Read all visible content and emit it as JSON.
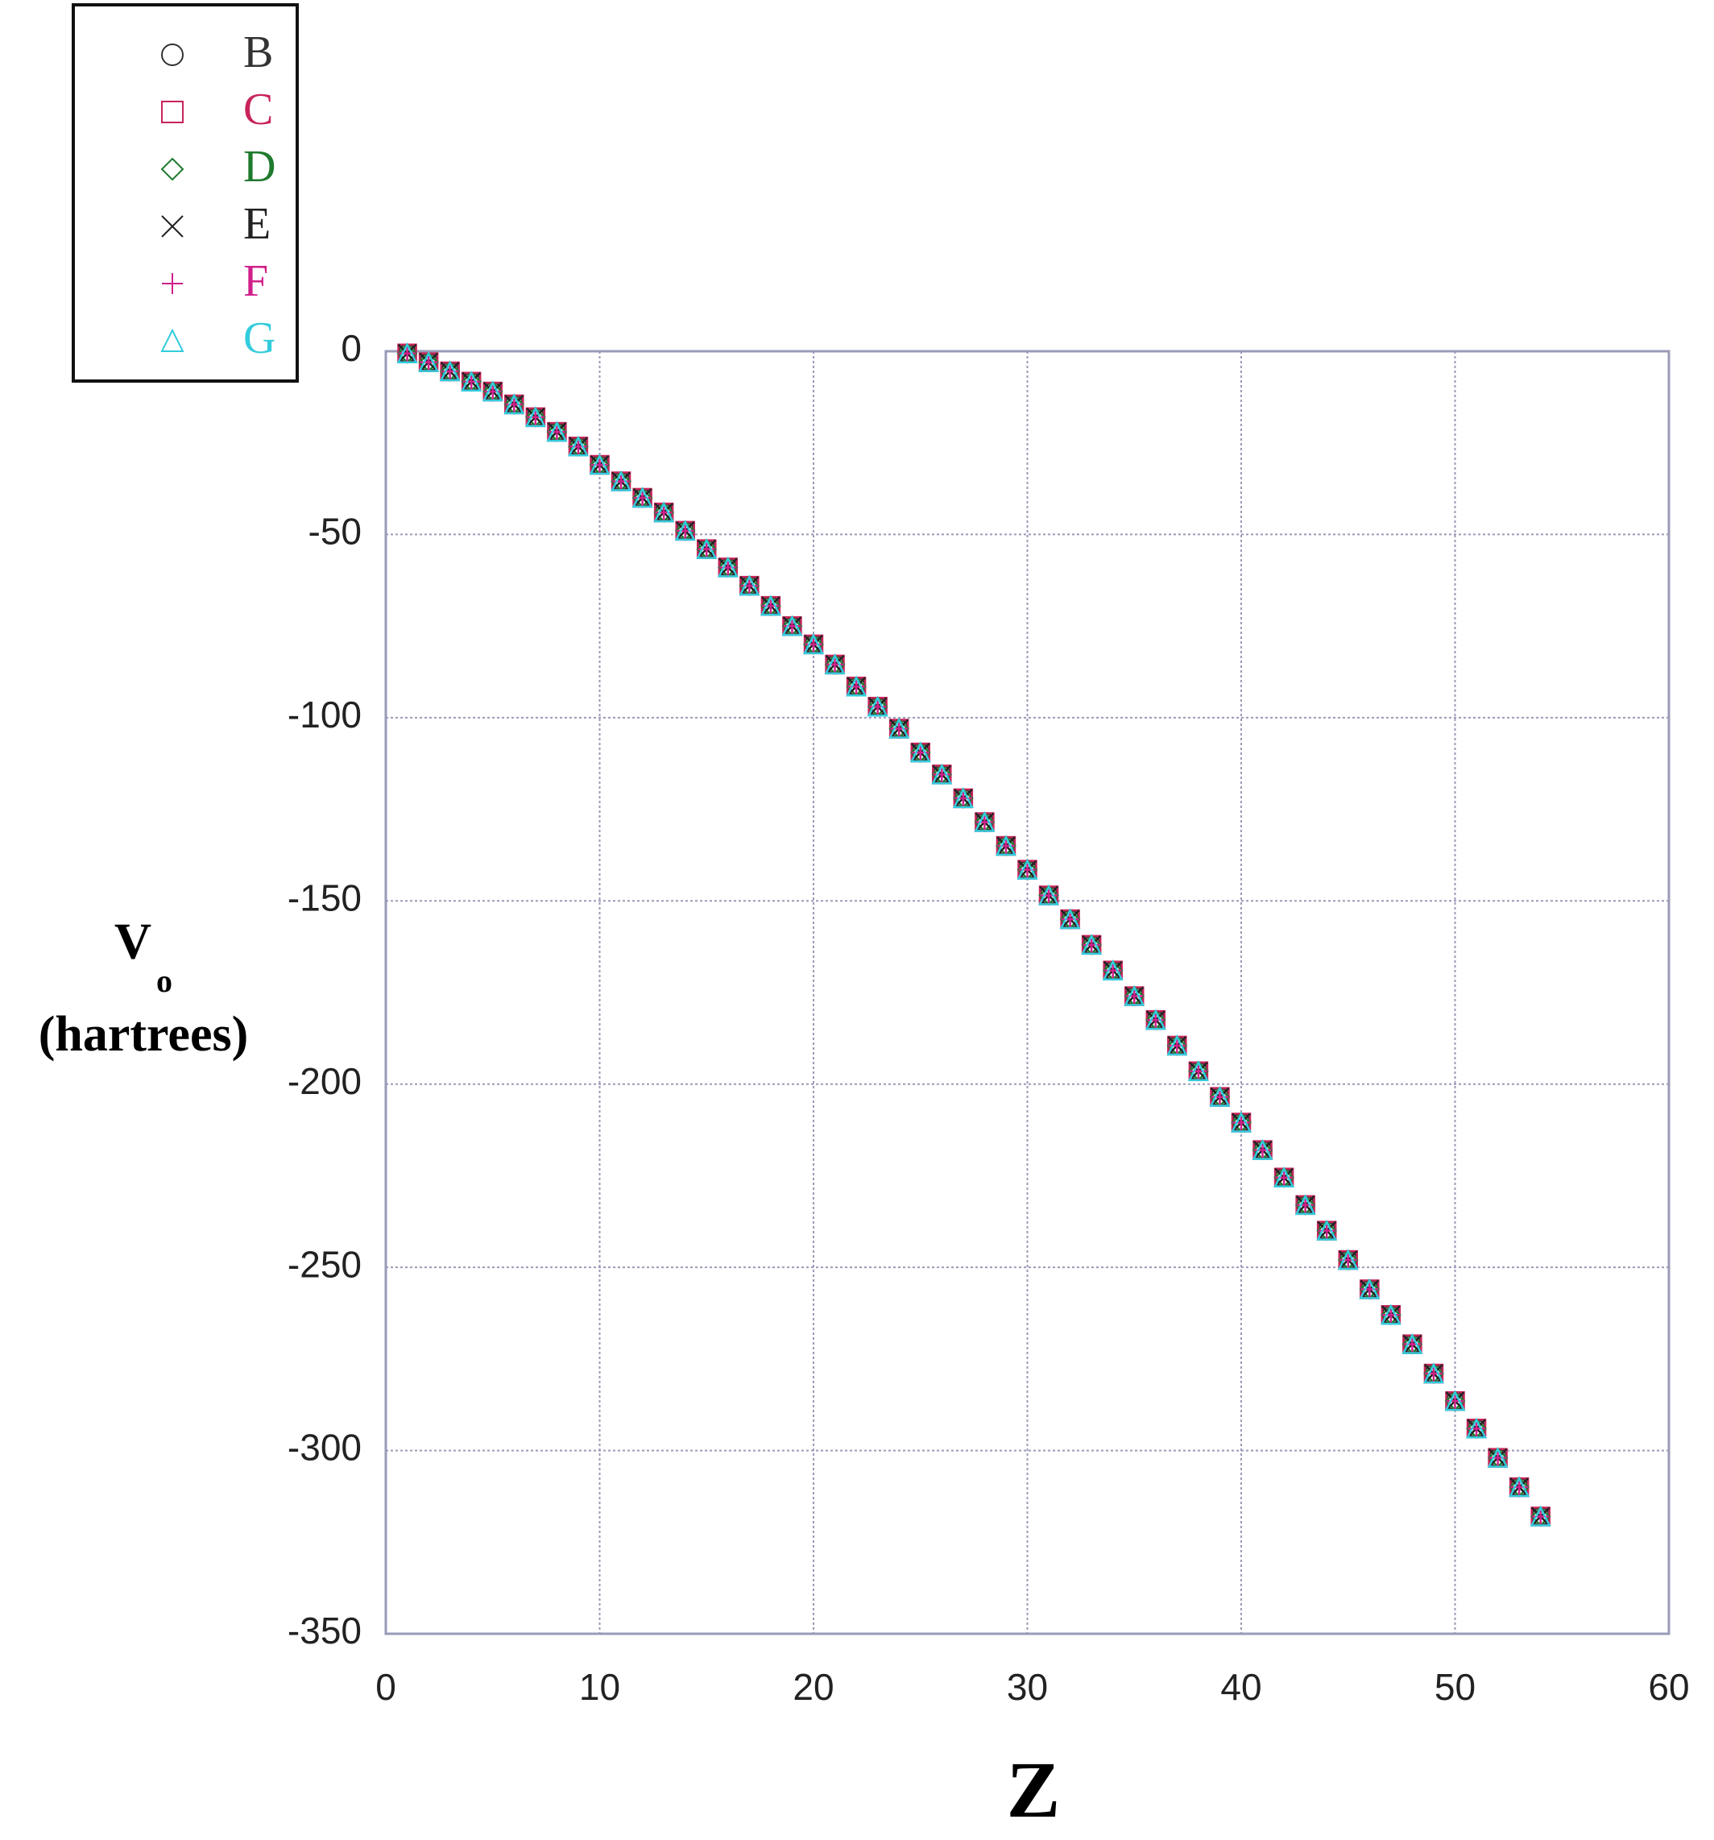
{
  "chart_data": {
    "type": "scatter",
    "x_label": "Z",
    "y_label": {
      "main": "V",
      "subscript": "o",
      "unit": "(hartrees)"
    },
    "x": [
      1,
      2,
      3,
      4,
      5,
      6,
      7,
      8,
      9,
      10,
      11,
      12,
      13,
      14,
      15,
      16,
      17,
      18,
      19,
      20,
      21,
      22,
      23,
      24,
      25,
      26,
      27,
      28,
      29,
      30,
      31,
      32,
      33,
      34,
      35,
      36,
      37,
      38,
      39,
      40,
      41,
      42,
      43,
      44,
      45,
      46,
      47,
      48,
      49,
      50,
      51,
      52,
      53,
      54
    ],
    "series": [
      {
        "name": "B",
        "color": "#333333",
        "marker": "circle",
        "values": [
          -0.6,
          -3,
          -5.5,
          -8.3,
          -11,
          -14.5,
          -18,
          -22,
          -26,
          -31,
          -35.5,
          -40,
          -44,
          -49,
          -54,
          -59,
          -64,
          -69.5,
          -75,
          -80,
          -85.5,
          -91.5,
          -97,
          -103,
          -109.5,
          -115.5,
          -122,
          -128.5,
          -135,
          -141.5,
          -148.5,
          -155,
          -162,
          -169,
          -176,
          -182.5,
          -189.5,
          -196.5,
          -203.5,
          -210.5,
          -218,
          -225.5,
          -233,
          -240,
          -248,
          -256,
          -263,
          -271,
          -279,
          -286.5,
          -294,
          -302,
          -310,
          -318
        ]
      },
      {
        "name": "C",
        "color": "#c8245a",
        "marker": "square",
        "values": [
          -0.6,
          -3,
          -5.5,
          -8.3,
          -11,
          -14.5,
          -18,
          -22,
          -26,
          -31,
          -35.5,
          -40,
          -44,
          -49,
          -54,
          -59,
          -64,
          -69.5,
          -75,
          -80,
          -85.5,
          -91.5,
          -97,
          -103,
          -109.5,
          -115.5,
          -122,
          -128.5,
          -135,
          -141.5,
          -148.5,
          -155,
          -162,
          -169,
          -176,
          -182.5,
          -189.5,
          -196.5,
          -203.5,
          -210.5,
          -218,
          -225.5,
          -233,
          -240,
          -248,
          -256,
          -263,
          -271,
          -279,
          -286.5,
          -294,
          -302,
          -310,
          -318
        ]
      },
      {
        "name": "D",
        "color": "#1f7a2e",
        "marker": "diamond",
        "values": [
          -0.6,
          -3,
          -5.5,
          -8.3,
          -11,
          -14.5,
          -18,
          -22,
          -26,
          -31,
          -35.5,
          -40,
          -44,
          -49,
          -54,
          -59,
          -64,
          -69.5,
          -75,
          -80,
          -85.5,
          -91.5,
          -97,
          -103,
          -109.5,
          -115.5,
          -122,
          -128.5,
          -135,
          -141.5,
          -148.5,
          -155,
          -162,
          -169,
          -176,
          -182.5,
          -189.5,
          -196.5,
          -203.5,
          -210.5,
          -218,
          -225.5,
          -233,
          -240,
          -248,
          -256,
          -263,
          -271,
          -279,
          -286.5,
          -294,
          -302,
          -310,
          -318
        ]
      },
      {
        "name": "E",
        "color": "#222222",
        "marker": "cross",
        "values": [
          -0.6,
          -3,
          -5.5,
          -8.3,
          -11,
          -14.5,
          -18,
          -22,
          -26,
          -31,
          -35.5,
          -40,
          -44,
          -49,
          -54,
          -59,
          -64,
          -69.5,
          -75,
          -80,
          -85.5,
          -91.5,
          -97,
          -103,
          -109.5,
          -115.5,
          -122,
          -128.5,
          -135,
          -141.5,
          -148.5,
          -155,
          -162,
          -169,
          -176,
          -182.5,
          -189.5,
          -196.5,
          -203.5,
          -210.5,
          -218,
          -225.5,
          -233,
          -240,
          -248,
          -256,
          -263,
          -271,
          -279,
          -286.5,
          -294,
          -302,
          -310,
          -318
        ]
      },
      {
        "name": "F",
        "color": "#d0208a",
        "marker": "plus",
        "values": [
          -0.6,
          -3,
          -5.5,
          -8.3,
          -11,
          -14.5,
          -18,
          -22,
          -26,
          -31,
          -35.5,
          -40,
          -44,
          -49,
          -54,
          -59,
          -64,
          -69.5,
          -75,
          -80,
          -85.5,
          -91.5,
          -97,
          -103,
          -109.5,
          -115.5,
          -122,
          -128.5,
          -135,
          -141.5,
          -148.5,
          -155,
          -162,
          -169,
          -176,
          -182.5,
          -189.5,
          -196.5,
          -203.5,
          -210.5,
          -218,
          -225.5,
          -233,
          -240,
          -248,
          -256,
          -263,
          -271,
          -279,
          -286.5,
          -294,
          -302,
          -310,
          -318
        ]
      },
      {
        "name": "G",
        "color": "#33ccdd",
        "marker": "triangle",
        "values": [
          -0.6,
          -3,
          -5.5,
          -8.3,
          -11,
          -14.5,
          -18,
          -22,
          -26,
          -31,
          -35.5,
          -40,
          -44,
          -49,
          -54,
          -59,
          -64,
          -69.5,
          -75,
          -80,
          -85.5,
          -91.5,
          -97,
          -103,
          -109.5,
          -115.5,
          -122,
          -128.5,
          -135,
          -141.5,
          -148.5,
          -155,
          -162,
          -169,
          -176,
          -182.5,
          -189.5,
          -196.5,
          -203.5,
          -210.5,
          -218,
          -225.5,
          -233,
          -240,
          -248,
          -256,
          -263,
          -271,
          -279,
          -286.5,
          -294,
          -302,
          -310,
          -318
        ]
      }
    ],
    "xlim": [
      0,
      60
    ],
    "xticks": [
      0,
      10,
      20,
      30,
      40,
      50,
      60
    ],
    "ylim": [
      -350,
      0
    ],
    "yticks": [
      0,
      -50,
      -100,
      -150,
      -200,
      -250,
      -300,
      -350
    ],
    "grid": true,
    "legend": "top-left"
  }
}
